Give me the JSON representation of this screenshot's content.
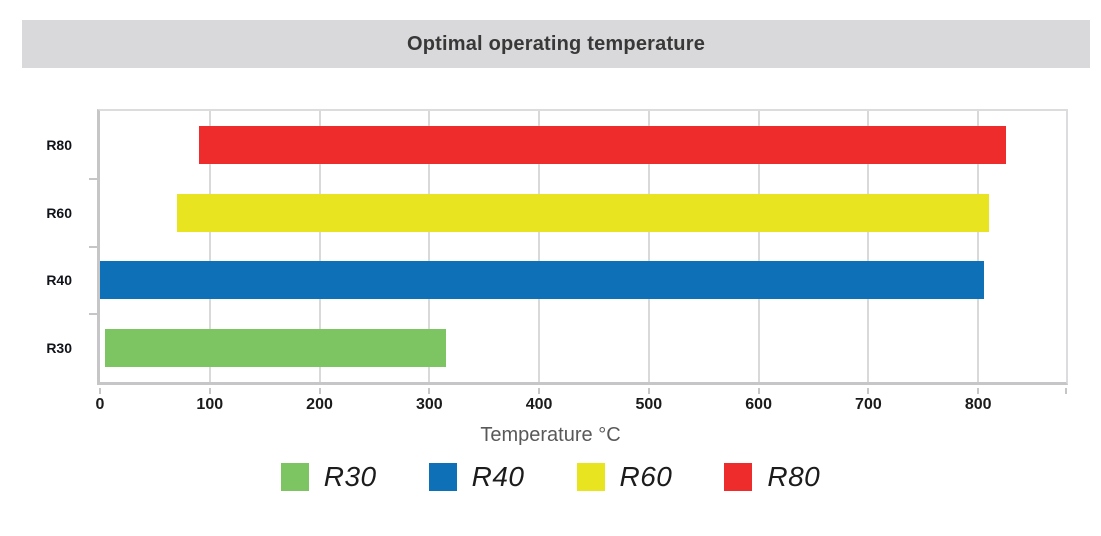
{
  "chart_data": {
    "type": "bar",
    "orientation": "horizontal",
    "title": "Optimal operating temperature",
    "xlabel": "Temperature °C",
    "xlim": [
      0,
      880
    ],
    "xticks": [
      0,
      100,
      200,
      300,
      400,
      500,
      600,
      700,
      800
    ],
    "grid": "vertical",
    "legend_position": "bottom",
    "categories": [
      "R80",
      "R60",
      "R40",
      "R30"
    ],
    "bars": [
      {
        "category": "R80",
        "start": 90,
        "end": 825,
        "color": "#ee2c2b"
      },
      {
        "category": "R60",
        "start": 70,
        "end": 810,
        "color": "#e8e420"
      },
      {
        "category": "R40",
        "start": 0,
        "end": 805,
        "color": "#0e71b7"
      },
      {
        "category": "R30",
        "start": 5,
        "end": 315,
        "color": "#7dc463"
      }
    ],
    "legend": [
      {
        "label": "R30",
        "color": "#7dc463"
      },
      {
        "label": "R40",
        "color": "#0e71b7"
      },
      {
        "label": "R60",
        "color": "#e8e420"
      },
      {
        "label": "R80",
        "color": "#ee2c2b"
      }
    ]
  },
  "colors": {
    "header_bg": "#d9d9db",
    "header_text": "#383838",
    "gridline": "#d9d9d9",
    "plot_border": "#dcdcde",
    "axis": "#c6c6c8",
    "tick_label": "#1b1b1b",
    "category_label": "#10131a",
    "axis_title": "#595959",
    "legend_label": "#1c1c1c"
  }
}
